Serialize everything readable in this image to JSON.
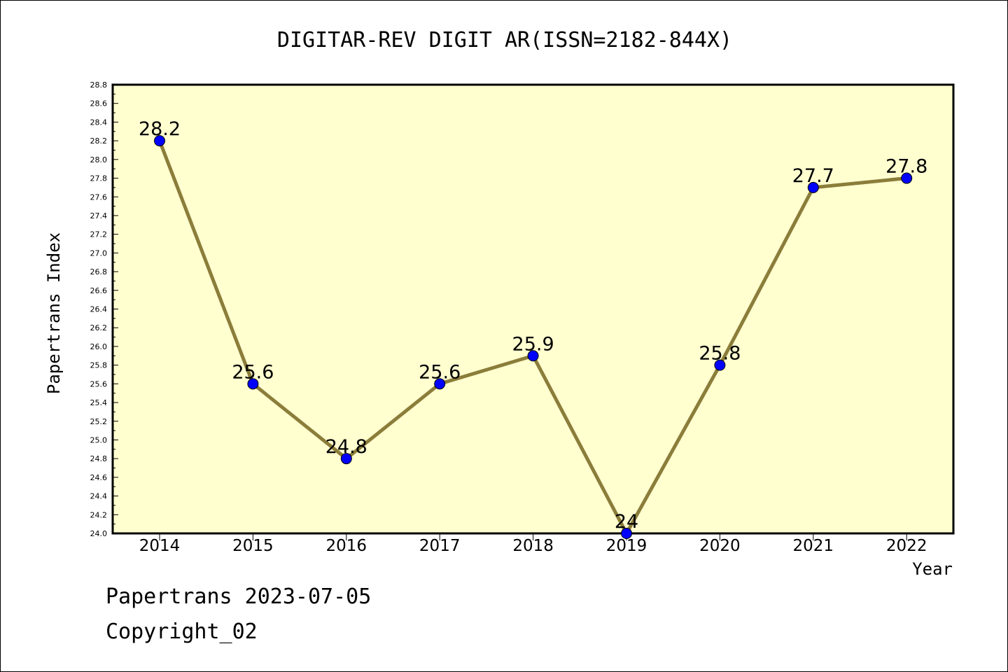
{
  "chart_data": {
    "type": "line",
    "title": "DIGITAR-REV DIGIT AR(ISSN=2182-844X)",
    "xlabel": "Year",
    "ylabel": "Papertrans Index",
    "categories": [
      "2014",
      "2015",
      "2016",
      "2017",
      "2018",
      "2019",
      "2020",
      "2021",
      "2022"
    ],
    "series": [
      {
        "values": [
          28.2,
          25.6,
          24.8,
          25.6,
          25.9,
          24.0,
          25.8,
          27.7,
          27.8
        ],
        "labels": [
          "28.2",
          "25.6",
          "24.8",
          "25.6",
          "25.9",
          "24",
          "25.8",
          "27.7",
          "27.8"
        ]
      }
    ],
    "ylim": [
      24.0,
      28.8
    ],
    "y_major_step": 0.2,
    "y_tick_labels": [
      "24.0",
      "24.2",
      "24.4",
      "24.6",
      "24.8",
      "25.0",
      "25.2",
      "25.4",
      "25.6",
      "25.8",
      "26.0",
      "26.2",
      "26.4",
      "26.6",
      "26.8",
      "27.0",
      "27.2",
      "27.4",
      "27.6",
      "27.8",
      "28.0",
      "28.2",
      "28.4",
      "28.6",
      "28.8"
    ],
    "grid": false,
    "colors": {
      "plot_background": "#ffffd0",
      "line": "#8b7d3a",
      "marker": "#0000ff"
    }
  },
  "footer": {
    "line1": "Papertrans 2023-07-05",
    "line2": "Copyright_02"
  }
}
